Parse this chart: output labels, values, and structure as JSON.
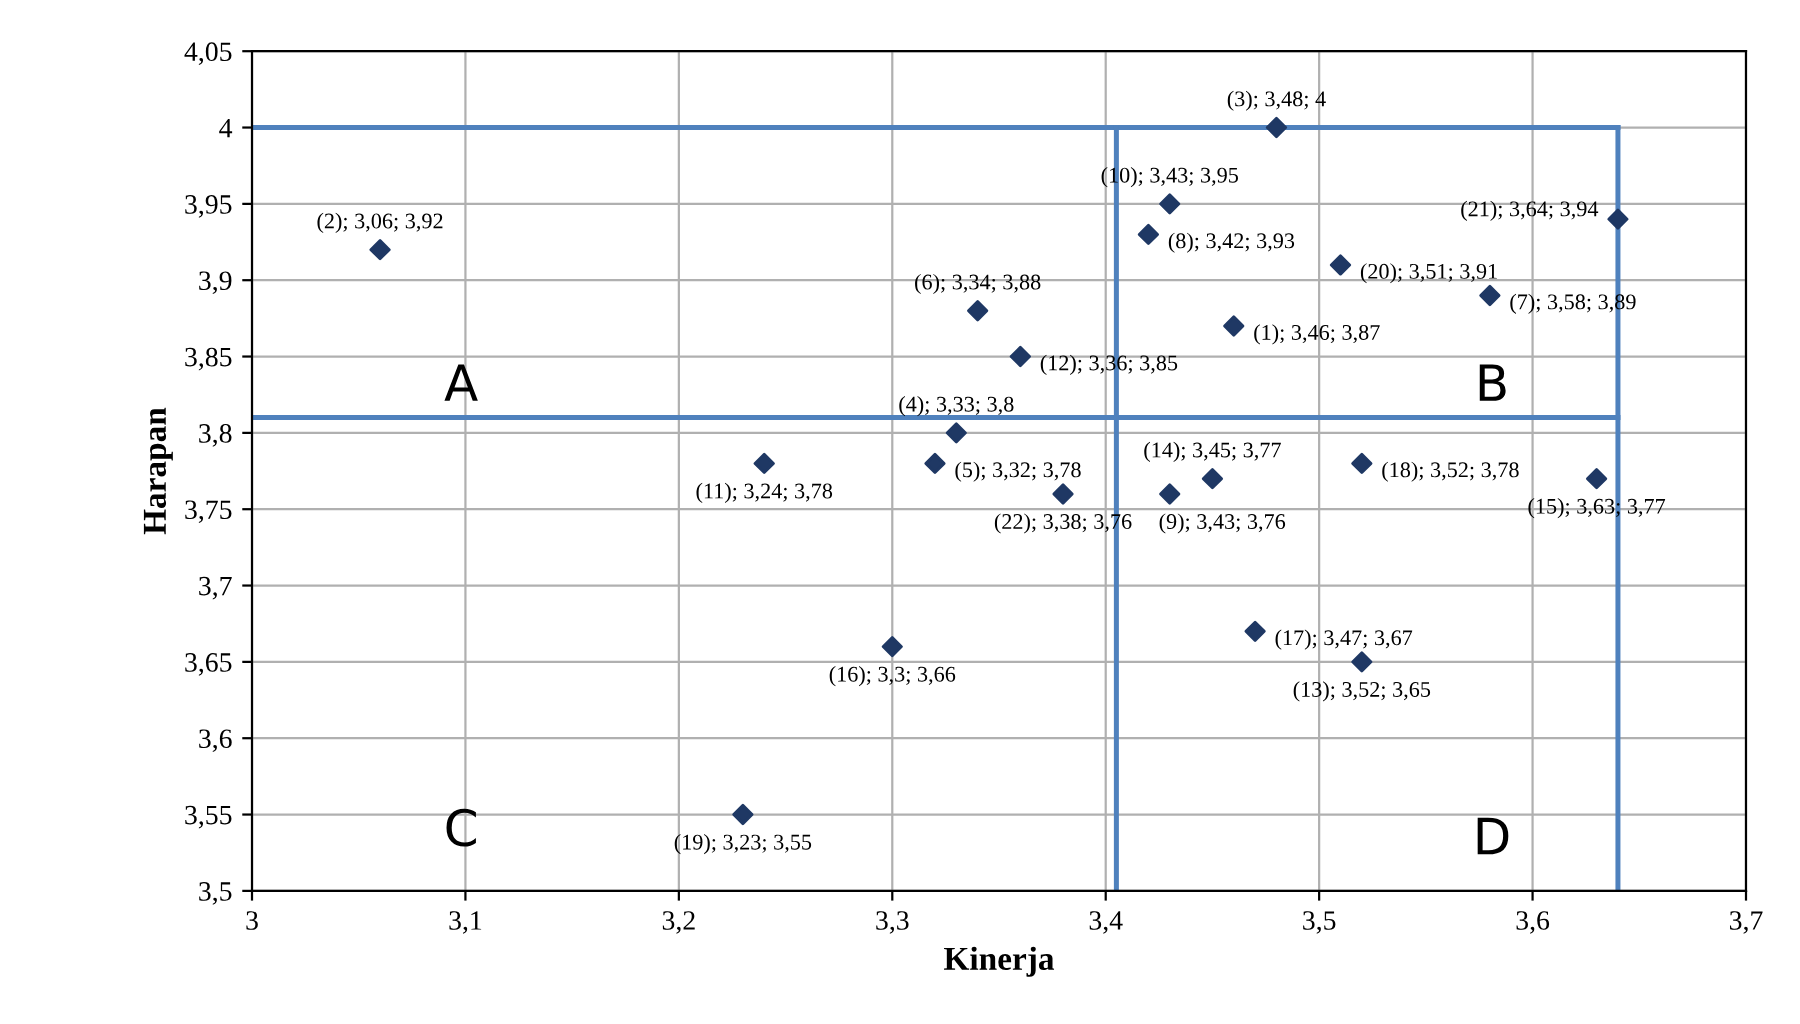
{
  "chart_data": {
    "type": "scatter",
    "xlabel": "Kinerja",
    "ylabel": "Harapan",
    "x": [
      3.46,
      3.06,
      3.48,
      3.33,
      3.32,
      3.34,
      3.58,
      3.42,
      3.43,
      3.43,
      3.24,
      3.36,
      3.52,
      3.45,
      3.63,
      3.3,
      3.47,
      3.52,
      3.23,
      3.51,
      3.64,
      3.38
    ],
    "series": [
      {
        "color": "#1f3864",
        "marker": "diamond",
        "values": [
          3.87,
          3.92,
          4,
          3.8,
          3.78,
          3.88,
          3.89,
          3.93,
          3.76,
          3.95,
          3.78,
          3.85,
          3.65,
          3.77,
          3.77,
          3.66,
          3.67,
          3.78,
          3.55,
          3.91,
          3.94,
          3.76
        ],
        "value_labels": [
          "(1); 3,46; 3,87",
          "(2); 3,06; 3,92",
          "(3); 3,48; 4",
          "(4); 3,33; 3,8",
          "(5); 3,32; 3,78",
          "(6); 3,34; 3,88",
          "(7); 3,58; 3,89",
          "(8); 3,42; 3,93",
          "(9); 3,43; 3,76",
          "(10); 3,43; 3,95",
          "(11); 3,24; 3,78",
          "(12); 3,36; 3,85",
          "(13); 3,52; 3,65",
          "(14); 3,45; 3,77",
          "(15); 3,63; 3,77",
          "(16); 3,3; 3,66",
          "(17); 3,47; 3,67",
          "(18); 3,52; 3,78",
          "(19); 3,23; 3,55",
          "(20); 3,51; 3,91",
          "(21); 3,64; 3,94",
          "(22); 3,38; 3,76"
        ]
      },
      {
        "type": "line",
        "color": "#4f81bd",
        "x": [
          3.0,
          3.64
        ],
        "values": [
          4.0,
          4.0
        ]
      },
      {
        "type": "line",
        "color": "#4f81bd",
        "x": [
          3.0,
          3.64
        ],
        "values": [
          3.81,
          3.81
        ]
      },
      {
        "type": "line",
        "color": "#4f81bd",
        "x": [
          3.405,
          3.405
        ],
        "values": [
          3.5,
          4.0
        ]
      },
      {
        "type": "line",
        "color": "#4f81bd",
        "x": [
          3.64,
          3.64
        ],
        "values": [
          3.5,
          4.0
        ]
      }
    ],
    "annotations": [
      "A",
      "B",
      "C",
      "D"
    ],
    "xlim": [
      3,
      3.7
    ],
    "xticks": [
      {
        "value": 3,
        "label": "3"
      },
      {
        "value": 3.1,
        "label": "3,1"
      },
      {
        "value": 3.2,
        "label": "3,2"
      },
      {
        "value": 3.3,
        "label": "3,3"
      },
      {
        "value": 3.4,
        "label": "3,4"
      },
      {
        "value": 3.5,
        "label": "3,5"
      },
      {
        "value": 3.6,
        "label": "3,6"
      },
      {
        "value": 3.7,
        "label": "3,7"
      }
    ],
    "ylim": [
      3.5,
      4.05
    ],
    "yticks": [
      {
        "value": 3.5,
        "label": "3,5"
      },
      {
        "value": 3.55,
        "label": "3,55"
      },
      {
        "value": 3.6,
        "label": "3,6"
      },
      {
        "value": 3.65,
        "label": "3,65"
      },
      {
        "value": 3.7,
        "label": "3,7"
      },
      {
        "value": 3.75,
        "label": "3,75"
      },
      {
        "value": 3.8,
        "label": "3,8"
      },
      {
        "value": 3.85,
        "label": "3,85"
      },
      {
        "value": 3.9,
        "label": "3,9"
      },
      {
        "value": 3.95,
        "label": "3,95"
      },
      {
        "value": 4,
        "label": "4"
      },
      {
        "value": 4.05,
        "label": "4,05"
      }
    ],
    "grid": true
  }
}
